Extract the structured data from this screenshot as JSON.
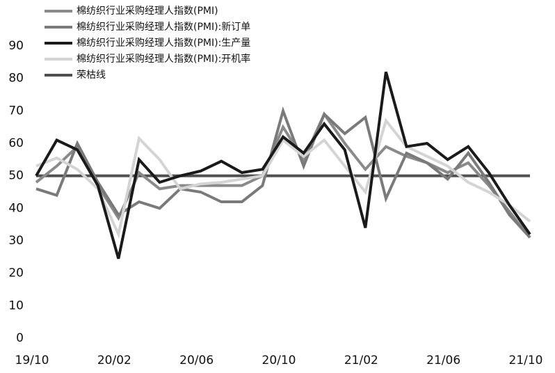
{
  "chart_data": {
    "type": "line",
    "categories": [
      "19/10",
      null,
      null,
      null,
      "20/02",
      null,
      null,
      null,
      "20/06",
      null,
      null,
      null,
      "20/10",
      null,
      null,
      null,
      "21/02",
      null,
      null,
      null,
      "21/06",
      null,
      null,
      null,
      "21/10"
    ],
    "ylim": [
      0,
      90
    ],
    "yticks": [
      0,
      10,
      20,
      30,
      40,
      50,
      60,
      70,
      80,
      90
    ],
    "series": [
      {
        "name": "棉纺织行业采购经理人指数(PMI)",
        "color": "#8a8a8a",
        "values": [
          48,
          53,
          59,
          47,
          37,
          51,
          46,
          47,
          47,
          47,
          47,
          50,
          65,
          55,
          69,
          60,
          52,
          59,
          56,
          54,
          51,
          54,
          47,
          39,
          31
        ]
      },
      {
        "name": "棉纺织行业采购经理人指数(PMI):新订单",
        "color": "#7a7a7a",
        "values": [
          46,
          44,
          60,
          48,
          38,
          42,
          40,
          46,
          45,
          42,
          42,
          47,
          70,
          53,
          69,
          63,
          68,
          43,
          57,
          54,
          49,
          57,
          48,
          38,
          31
        ]
      },
      {
        "name": "棉纺织行业采购经理人指数(PMI):生产量",
        "color": "#1a1a1a",
        "values": [
          50,
          61,
          58,
          47,
          24.5,
          55,
          48,
          50,
          51.5,
          54.5,
          51,
          52,
          62,
          57,
          66,
          58,
          34,
          82,
          59,
          60,
          55,
          59,
          51,
          41,
          32
        ]
      },
      {
        "name": "棉纺织行业采购经理人指数(PMI):开机率",
        "color": "#d4d4d4",
        "values": [
          53,
          55.5,
          52,
          46,
          32,
          61.5,
          55,
          46,
          47.5,
          48,
          49,
          50,
          61,
          56,
          61,
          53,
          45,
          67,
          59,
          56,
          53,
          48,
          45,
          41,
          36
        ]
      },
      {
        "name": "荣枯线",
        "color": "#505050",
        "values": [
          50,
          50,
          50,
          50,
          50,
          50,
          50,
          50,
          50,
          50,
          50,
          50,
          50,
          50,
          50,
          50,
          50,
          50,
          50,
          50,
          50,
          50,
          50,
          50,
          50
        ]
      }
    ]
  }
}
